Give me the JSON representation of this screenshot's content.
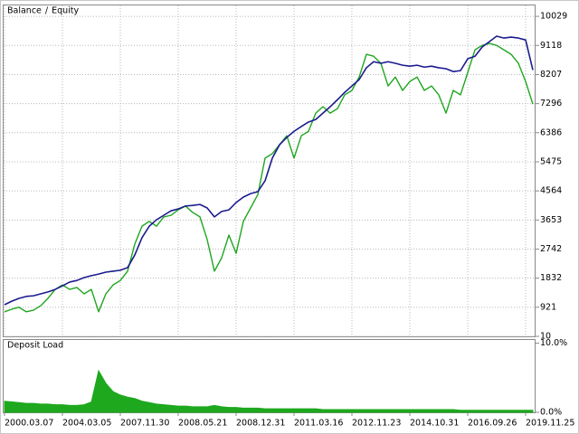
{
  "chart_data": [
    {
      "type": "line",
      "legend_separator": "/",
      "categories": [
        "2000.03.07",
        null,
        null,
        null,
        null,
        null,
        null,
        null,
        "2004.03.05",
        null,
        null,
        null,
        null,
        null,
        null,
        null,
        "2007.11.30",
        null,
        null,
        null,
        null,
        null,
        null,
        null,
        "2008.05.21",
        null,
        null,
        null,
        null,
        null,
        null,
        null,
        "2008.12.31",
        null,
        null,
        null,
        null,
        null,
        null,
        null,
        "2011.03.16",
        null,
        null,
        null,
        null,
        null,
        null,
        null,
        "2012.11.23",
        null,
        null,
        null,
        null,
        null,
        null,
        null,
        "2014.10.31",
        null,
        null,
        null,
        null,
        null,
        null,
        null,
        "2016.09.26",
        null,
        null,
        null,
        null,
        null,
        null,
        null,
        "2019.11.25",
        null
      ],
      "series": [
        {
          "name": "Balance",
          "color": "#1b1b8e",
          "values": [
            1000,
            1110,
            1200,
            1260,
            1280,
            1340,
            1400,
            1480,
            1590,
            1710,
            1760,
            1850,
            1910,
            1960,
            2020,
            2050,
            2080,
            2160,
            2560,
            3100,
            3460,
            3660,
            3800,
            3940,
            4000,
            4090,
            4110,
            4140,
            4030,
            3750,
            3920,
            3970,
            4200,
            4370,
            4480,
            4540,
            4880,
            5590,
            6010,
            6240,
            6430,
            6580,
            6720,
            6800,
            7000,
            7200,
            7420,
            7650,
            7850,
            8050,
            8420,
            8610,
            8560,
            8610,
            8560,
            8500,
            8470,
            8500,
            8440,
            8470,
            8420,
            8390,
            8300,
            8330,
            8700,
            8780,
            9070,
            9240,
            9410,
            9350,
            9380,
            9350,
            9290,
            8350
          ]
        },
        {
          "name": "Equity",
          "color": "#1fa61f",
          "values": [
            780,
            860,
            920,
            780,
            830,
            970,
            1200,
            1480,
            1620,
            1480,
            1540,
            1340,
            1480,
            780,
            1340,
            1620,
            1760,
            2050,
            2900,
            3460,
            3610,
            3460,
            3750,
            3800,
            3970,
            4090,
            3890,
            3750,
            3040,
            2050,
            2470,
            3180,
            2610,
            3610,
            4030,
            4450,
            5590,
            5730,
            6010,
            6290,
            5590,
            6290,
            6430,
            7000,
            7200,
            7000,
            7140,
            7570,
            7710,
            8130,
            8840,
            8780,
            8560,
            7850,
            8130,
            7710,
            7990,
            8130,
            7710,
            7850,
            7570,
            7000,
            7710,
            7570,
            8270,
            8980,
            9120,
            9180,
            9120,
            8980,
            8840,
            8560,
            7990,
            7280
          ]
        }
      ],
      "ylim": [
        10,
        10400
      ],
      "yticks": [
        10,
        921,
        1832,
        2742,
        3653,
        4564,
        5475,
        6386,
        7296,
        8207,
        9118,
        10029
      ],
      "grid": true
    },
    {
      "type": "area",
      "title": "Deposit Load",
      "color": "#1ea81e",
      "values": [
        1.6,
        1.5,
        1.4,
        1.3,
        1.3,
        1.2,
        1.2,
        1.1,
        1.1,
        1.0,
        1.0,
        1.1,
        1.5,
        6.0,
        4.2,
        3.0,
        2.5,
        2.2,
        2.0,
        1.6,
        1.4,
        1.2,
        1.1,
        1.0,
        0.9,
        0.9,
        0.8,
        0.8,
        0.8,
        1.0,
        0.8,
        0.7,
        0.7,
        0.6,
        0.6,
        0.6,
        0.5,
        0.5,
        0.5,
        0.5,
        0.5,
        0.5,
        0.5,
        0.5,
        0.4,
        0.4,
        0.4,
        0.4,
        0.4,
        0.4,
        0.4,
        0.4,
        0.4,
        0.4,
        0.4,
        0.4,
        0.4,
        0.4,
        0.4,
        0.4,
        0.4,
        0.4,
        0.4,
        0.3,
        0.3,
        0.3,
        0.3,
        0.3,
        0.3,
        0.3,
        0.3,
        0.3,
        0.3,
        0.3
      ],
      "ylim": [
        0,
        10.6
      ],
      "yticks": [
        {
          "value": 10,
          "label": "10.0%"
        },
        {
          "value": 0,
          "label": "0.0%"
        }
      ]
    }
  ]
}
